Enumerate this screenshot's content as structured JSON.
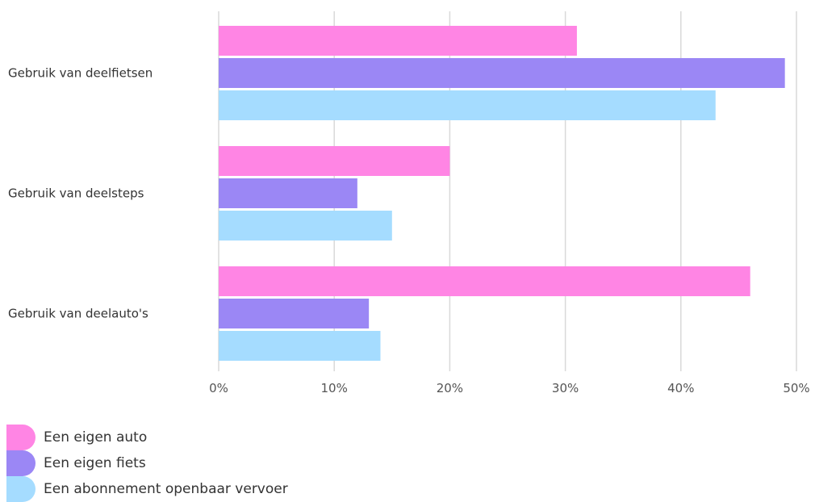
{
  "chart_data": {
    "type": "bar",
    "orientation": "horizontal",
    "categories": [
      "Gebruik van deelfietsen",
      "Gebruik van deelsteps",
      "Gebruik van deelauto's"
    ],
    "series": [
      {
        "name": "Een eigen auto",
        "color": "#ff85e4",
        "values": [
          31,
          20,
          46
        ]
      },
      {
        "name": "Een eigen fiets",
        "color": "#9b87f5",
        "values": [
          49,
          12,
          13
        ]
      },
      {
        "name": "Een abonnement openbaar vervoer",
        "color": "#a5dcff",
        "values": [
          43,
          15,
          14
        ]
      }
    ],
    "xlim": [
      0,
      50
    ],
    "xticks": [
      0,
      10,
      20,
      30,
      40,
      50
    ],
    "xtick_labels": [
      "0%",
      "10%",
      "20%",
      "30%",
      "40%",
      "50%"
    ],
    "grid": "vertical",
    "legend_position": "bottom-left",
    "title": "",
    "xlabel": "",
    "ylabel": ""
  }
}
